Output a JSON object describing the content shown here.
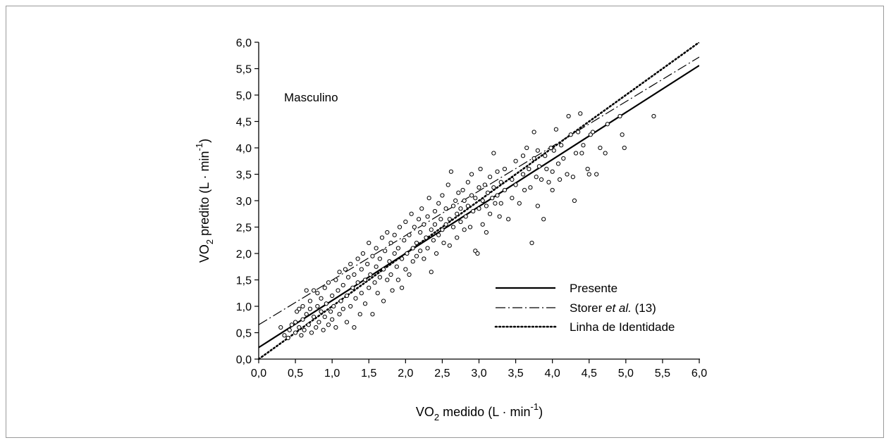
{
  "chart_data": {
    "type": "scatter",
    "annotation": "Masculino",
    "xlabel": {
      "prefix": "VO",
      "sub": "2",
      "main": " medido (L · min",
      "sup": "-1",
      "suffix": ")"
    },
    "ylabel": {
      "prefix": "VO",
      "sub": "2",
      "main": " predito (L · min",
      "sup": "-1",
      "suffix": ")"
    },
    "xlim": [
      0,
      6
    ],
    "ylim": [
      0,
      6
    ],
    "xticks": [
      "0,0",
      "0,5",
      "1,0",
      "1,5",
      "2,0",
      "2,5",
      "3,0",
      "3,5",
      "4,0",
      "4,5",
      "5,0",
      "5,5",
      "6,0"
    ],
    "yticks": [
      "0,0",
      "0,5",
      "1,0",
      "1,5",
      "2,0",
      "2,5",
      "3,0",
      "3,5",
      "4,0",
      "4,5",
      "5,0",
      "5,5",
      "6,0"
    ],
    "grid": false,
    "legend_position": "bottom-right",
    "series": [
      {
        "name": "Presente",
        "style": "solid",
        "intercept": 0.22,
        "slope": 0.89
      },
      {
        "name_parts": [
          "Storer ",
          "et al.",
          " (13)"
        ],
        "style": "dash-dot",
        "intercept": 0.65,
        "slope": 0.845
      },
      {
        "name": "Linha de Identidade",
        "style": "dotted",
        "intercept": 0.0,
        "slope": 1.0
      }
    ],
    "points": {
      "marker": "open-circle",
      "data": [
        [
          0.3,
          0.6
        ],
        [
          0.35,
          0.45
        ],
        [
          0.4,
          0.4
        ],
        [
          0.42,
          0.55
        ],
        [
          0.45,
          0.65
        ],
        [
          0.5,
          0.5
        ],
        [
          0.5,
          0.7
        ],
        [
          0.52,
          0.9
        ],
        [
          0.55,
          0.6
        ],
        [
          0.55,
          0.95
        ],
        [
          0.58,
          0.45
        ],
        [
          0.6,
          0.75
        ],
        [
          0.6,
          1.0
        ],
        [
          0.62,
          0.55
        ],
        [
          0.65,
          1.3
        ],
        [
          0.65,
          0.85
        ],
        [
          0.68,
          0.65
        ],
        [
          0.7,
          0.95
        ],
        [
          0.7,
          1.1
        ],
        [
          0.72,
          0.5
        ],
        [
          0.75,
          1.3
        ],
        [
          0.75,
          0.8
        ],
        [
          0.78,
          0.6
        ],
        [
          0.8,
          1.0
        ],
        [
          0.8,
          1.25
        ],
        [
          0.82,
          0.7
        ],
        [
          0.85,
          0.9
        ],
        [
          0.85,
          1.15
        ],
        [
          0.88,
          0.55
        ],
        [
          0.9,
          1.35
        ],
        [
          0.9,
          0.8
        ],
        [
          0.92,
          1.05
        ],
        [
          0.95,
          0.65
        ],
        [
          0.95,
          1.45
        ],
        [
          0.98,
          0.9
        ],
        [
          1.0,
          1.2
        ],
        [
          1.0,
          0.75
        ],
        [
          1.02,
          1.0
        ],
        [
          1.05,
          1.5
        ],
        [
          1.05,
          0.6
        ],
        [
          1.08,
          1.3
        ],
        [
          1.1,
          0.85
        ],
        [
          1.1,
          1.65
        ],
        [
          1.12,
          1.1
        ],
        [
          1.15,
          0.95
        ],
        [
          1.15,
          1.4
        ],
        [
          1.18,
          1.7
        ],
        [
          1.2,
          1.2
        ],
        [
          1.2,
          0.7
        ],
        [
          1.22,
          1.55
        ],
        [
          1.25,
          1.0
        ],
        [
          1.25,
          1.8
        ],
        [
          1.28,
          1.35
        ],
        [
          1.3,
          0.6
        ],
        [
          1.3,
          1.6
        ],
        [
          1.32,
          1.15
        ],
        [
          1.35,
          1.9
        ],
        [
          1.35,
          1.45
        ],
        [
          1.38,
          0.85
        ],
        [
          1.4,
          1.7
        ],
        [
          1.4,
          1.25
        ],
        [
          1.42,
          2.0
        ],
        [
          1.45,
          1.5
        ],
        [
          1.45,
          1.05
        ],
        [
          1.48,
          1.8
        ],
        [
          1.5,
          2.2
        ],
        [
          1.5,
          1.35
        ],
        [
          1.52,
          1.6
        ],
        [
          1.55,
          0.85
        ],
        [
          1.55,
          1.95
        ],
        [
          1.58,
          1.45
        ],
        [
          1.6,
          1.75
        ],
        [
          1.6,
          2.1
        ],
        [
          1.62,
          1.25
        ],
        [
          1.65,
          1.9
        ],
        [
          1.65,
          1.55
        ],
        [
          1.68,
          2.3
        ],
        [
          1.7,
          1.1
        ],
        [
          1.7,
          1.7
        ],
        [
          1.72,
          2.05
        ],
        [
          1.75,
          1.5
        ],
        [
          1.75,
          2.4
        ],
        [
          1.78,
          1.85
        ],
        [
          1.8,
          2.2
        ],
        [
          1.8,
          1.6
        ],
        [
          1.82,
          1.3
        ],
        [
          1.85,
          2.0
        ],
        [
          1.85,
          2.35
        ],
        [
          1.88,
          1.75
        ],
        [
          1.9,
          2.1
        ],
        [
          1.9,
          1.5
        ],
        [
          1.92,
          2.5
        ],
        [
          1.95,
          1.9
        ],
        [
          1.95,
          1.35
        ],
        [
          1.98,
          2.25
        ],
        [
          2.0,
          1.7
        ],
        [
          2.0,
          2.6
        ],
        [
          2.02,
          2.0
        ],
        [
          2.05,
          2.35
        ],
        [
          2.05,
          1.6
        ],
        [
          2.08,
          2.75
        ],
        [
          2.1,
          2.1
        ],
        [
          2.1,
          1.85
        ],
        [
          2.12,
          2.5
        ],
        [
          2.15,
          2.2
        ],
        [
          2.15,
          1.95
        ],
        [
          2.18,
          2.65
        ],
        [
          2.2,
          2.4
        ],
        [
          2.2,
          2.05
        ],
        [
          2.22,
          2.85
        ],
        [
          2.25,
          1.9
        ],
        [
          2.25,
          2.55
        ],
        [
          2.28,
          2.3
        ],
        [
          2.3,
          2.7
        ],
        [
          2.3,
          2.1
        ],
        [
          2.32,
          3.05
        ],
        [
          2.35,
          2.45
        ],
        [
          2.35,
          1.65
        ],
        [
          2.38,
          2.25
        ],
        [
          2.4,
          2.8
        ],
        [
          2.4,
          2.55
        ],
        [
          2.42,
          2.0
        ],
        [
          2.45,
          2.95
        ],
        [
          2.45,
          2.35
        ],
        [
          2.48,
          2.65
        ],
        [
          2.5,
          3.1
        ],
        [
          2.5,
          2.45
        ],
        [
          2.52,
          2.2
        ],
        [
          2.55,
          2.85
        ],
        [
          2.55,
          2.55
        ],
        [
          2.58,
          3.3
        ],
        [
          2.6,
          2.65
        ],
        [
          2.6,
          2.15
        ],
        [
          2.62,
          3.55
        ],
        [
          2.65,
          2.9
        ],
        [
          2.65,
          2.5
        ],
        [
          2.68,
          3.0
        ],
        [
          2.7,
          2.75
        ],
        [
          2.7,
          2.3
        ],
        [
          2.72,
          3.15
        ],
        [
          2.75,
          2.85
        ],
        [
          2.75,
          2.6
        ],
        [
          2.78,
          3.2
        ],
        [
          2.8,
          2.45
        ],
        [
          2.8,
          3.0
        ],
        [
          2.82,
          2.7
        ],
        [
          2.85,
          3.35
        ],
        [
          2.85,
          2.9
        ],
        [
          2.88,
          2.5
        ],
        [
          2.9,
          3.1
        ],
        [
          2.9,
          3.5
        ],
        [
          2.92,
          2.8
        ],
        [
          2.95,
          3.05
        ],
        [
          2.95,
          2.05
        ],
        [
          2.98,
          2.0
        ],
        [
          3.0,
          3.25
        ],
        [
          3.0,
          2.85
        ],
        [
          3.02,
          3.6
        ],
        [
          3.05,
          3.0
        ],
        [
          3.05,
          2.55
        ],
        [
          3.08,
          3.3
        ],
        [
          3.1,
          2.9
        ],
        [
          3.1,
          2.4
        ],
        [
          3.12,
          3.15
        ],
        [
          3.15,
          3.45
        ],
        [
          3.15,
          2.75
        ],
        [
          3.18,
          3.05
        ],
        [
          3.2,
          3.9
        ],
        [
          3.2,
          3.25
        ],
        [
          3.22,
          2.95
        ],
        [
          3.25,
          3.55
        ],
        [
          3.25,
          3.1
        ],
        [
          3.28,
          2.7
        ],
        [
          3.3,
          3.35
        ],
        [
          3.3,
          2.95
        ],
        [
          3.35,
          3.6
        ],
        [
          3.35,
          3.2
        ],
        [
          3.4,
          2.65
        ],
        [
          3.45,
          3.4
        ],
        [
          3.45,
          3.05
        ],
        [
          3.5,
          3.75
        ],
        [
          3.5,
          3.3
        ],
        [
          3.55,
          2.95
        ],
        [
          3.6,
          3.5
        ],
        [
          3.6,
          3.85
        ],
        [
          3.62,
          3.2
        ],
        [
          3.65,
          4.0
        ],
        [
          3.68,
          3.6
        ],
        [
          3.7,
          3.25
        ],
        [
          3.72,
          2.2
        ],
        [
          3.75,
          4.3
        ],
        [
          3.75,
          3.8
        ],
        [
          3.78,
          3.45
        ],
        [
          3.8,
          3.95
        ],
        [
          3.8,
          2.9
        ],
        [
          3.82,
          3.65
        ],
        [
          3.85,
          3.4
        ],
        [
          3.88,
          2.65
        ],
        [
          3.9,
          3.85
        ],
        [
          3.92,
          3.6
        ],
        [
          3.95,
          3.35
        ],
        [
          3.98,
          4.0
        ],
        [
          4.0,
          3.55
        ],
        [
          4.0,
          3.2
        ],
        [
          4.02,
          3.95
        ],
        [
          4.05,
          4.35
        ],
        [
          4.08,
          3.7
        ],
        [
          4.1,
          3.4
        ],
        [
          4.12,
          4.05
        ],
        [
          4.15,
          3.8
        ],
        [
          4.2,
          3.5
        ],
        [
          4.22,
          4.6
        ],
        [
          4.25,
          4.25
        ],
        [
          4.28,
          3.45
        ],
        [
          4.3,
          3.0
        ],
        [
          4.32,
          3.9
        ],
        [
          4.35,
          4.3
        ],
        [
          4.38,
          4.65
        ],
        [
          4.4,
          3.9
        ],
        [
          4.42,
          4.05
        ],
        [
          4.48,
          3.6
        ],
        [
          4.5,
          3.5
        ],
        [
          4.52,
          4.25
        ],
        [
          4.55,
          4.3
        ],
        [
          4.6,
          3.5
        ],
        [
          4.65,
          4.0
        ],
        [
          4.72,
          3.9
        ],
        [
          4.75,
          4.45
        ],
        [
          4.92,
          4.6
        ],
        [
          4.95,
          4.25
        ],
        [
          4.98,
          4.0
        ],
        [
          5.38,
          4.6
        ]
      ]
    }
  }
}
